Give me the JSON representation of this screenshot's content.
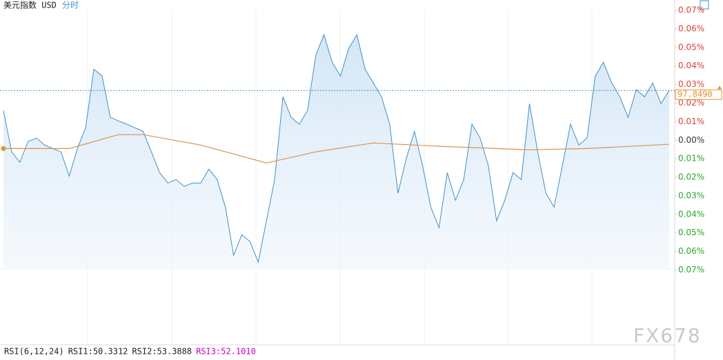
{
  "chart_data": {
    "type": "line",
    "title": "美元指数 USD",
    "subtitle": "分时",
    "last_price_label": "97.8490",
    "watermark": "FX678",
    "rsi": {
      "label": "RSI(6,12,24)",
      "items": [
        "RSI1:50.3312",
        "RSI2:53.3888",
        "RSI3:52.1010"
      ],
      "colors": [
        "#222222",
        "#222222",
        "#cc00cc"
      ]
    },
    "ylim": [
      -0.0728,
      0.0756
    ],
    "yticks": [
      {
        "value": 0.07,
        "label": "0.07%"
      },
      {
        "value": 0.06,
        "label": "0.06%"
      },
      {
        "value": 0.05,
        "label": "0.05%"
      },
      {
        "value": 0.04,
        "label": "0.04%"
      },
      {
        "value": 0.03,
        "label": "0.03%"
      },
      {
        "value": 0.02,
        "label": "0.02%"
      },
      {
        "value": 0.01,
        "label": "0.01%"
      },
      {
        "value": 0,
        "label": "0.00%"
      },
      {
        "value": -0.01,
        "label": "0.01%"
      },
      {
        "value": -0.02,
        "label": "0.02%"
      },
      {
        "value": -0.03,
        "label": "0.03%"
      },
      {
        "value": -0.04,
        "label": "0.04%"
      },
      {
        "value": -0.05,
        "label": "0.05%"
      },
      {
        "value": -0.06,
        "label": "0.06%"
      },
      {
        "value": -0.07,
        "label": "0.07%"
      }
    ],
    "series": [
      {
        "color": "#3f8fc8",
        "values": [
          0.016,
          -0.0063,
          -0.0119,
          -0.0007,
          0.0011,
          -0.0026,
          -0.0045,
          -0.0063,
          -0.0194,
          -0.0045,
          0.0067,
          0.0383,
          0.0346,
          0.0123,
          0.0104,
          0.0086,
          0.0067,
          0.0048,
          -0.0063,
          -0.0175,
          -0.0231,
          -0.0212,
          -0.0249,
          -0.0231,
          -0.0231,
          -0.0156,
          -0.0212,
          -0.0361,
          -0.0621,
          -0.051,
          -0.0547,
          -0.0658,
          -0.0435,
          -0.0212,
          0.0234,
          0.0123,
          0.0086,
          0.016,
          0.0458,
          0.0569,
          0.042,
          0.0346,
          0.0495,
          0.0569,
          0.0383,
          0.0309,
          0.0234,
          0.0086,
          -0.0286,
          -0.01,
          0.0048,
          -0.0138,
          -0.0361,
          -0.0472,
          -0.0175,
          -0.0324,
          -0.0212,
          0.0086,
          0.0011,
          -0.0138,
          -0.0435,
          -0.0324,
          -0.0175,
          -0.0212,
          0.0197,
          -0.0063,
          -0.0286,
          -0.0361,
          -0.0138,
          0.0086,
          -0.0026,
          0.0011,
          0.0346,
          0.042,
          0.0309,
          0.0234,
          0.0123,
          0.0272,
          0.0234,
          0.0309,
          0.0197,
          0.0268
        ]
      },
      {
        "color": "#d9914a",
        "x": [
          0,
          8,
          14,
          17,
          24,
          32,
          38,
          45,
          53,
          64,
          71,
          81
        ],
        "values": [
          -0.0045,
          -0.0045,
          0.003,
          0.003,
          -0.0026,
          -0.0123,
          -0.0063,
          -0.0015,
          -0.0033,
          -0.0052,
          -0.0045,
          -0.0022
        ]
      }
    ]
  }
}
